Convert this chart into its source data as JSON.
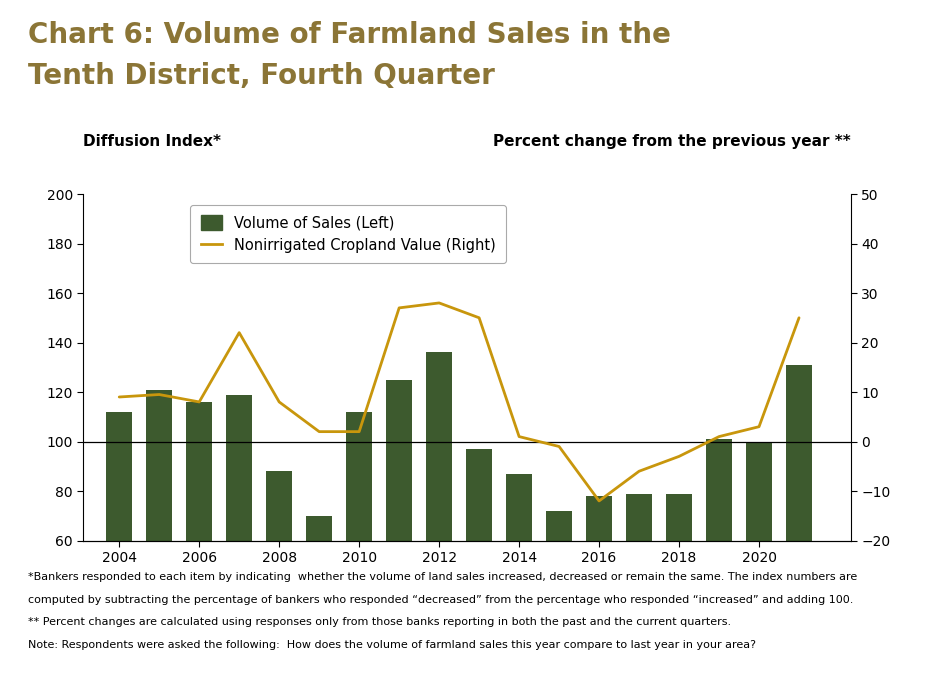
{
  "years": [
    2004,
    2005,
    2006,
    2007,
    2008,
    2009,
    2010,
    2011,
    2012,
    2013,
    2014,
    2015,
    2016,
    2017,
    2018,
    2019,
    2020,
    2021
  ],
  "bar_values": [
    112,
    121,
    116,
    119,
    88,
    70,
    112,
    125,
    136,
    97,
    87,
    72,
    78,
    79,
    79,
    101,
    100,
    131
  ],
  "line_values": [
    9,
    9.5,
    8,
    22,
    8,
    2,
    2,
    27,
    28,
    25,
    1,
    -1,
    -12,
    -6,
    -3,
    1,
    3,
    25
  ],
  "bar_color": "#3d5a2e",
  "line_color": "#c8960c",
  "title_line1": "Chart 6: Volume of Farmland Sales in the",
  "title_line2": "Tenth District, Fourth Quarter",
  "title_color": "#8b7536",
  "left_axis_label": "Diffusion Index*",
  "right_axis_label": "Percent change from the previous year **",
  "ylim_left": [
    60,
    200
  ],
  "ylim_right": [
    -20,
    50
  ],
  "yticks_left": [
    60,
    80,
    100,
    120,
    140,
    160,
    180,
    200
  ],
  "yticks_right": [
    -20,
    -10,
    0,
    10,
    20,
    30,
    40,
    50
  ],
  "xticks": [
    2004,
    2006,
    2008,
    2010,
    2012,
    2014,
    2016,
    2018,
    2020
  ],
  "legend_label_bar": "Volume of Sales (Left)",
  "legend_label_line": "Nonirrigated Cropland Value (Right)",
  "footnote1": "*Bankers responded to each item by indicating  whether the volume of land sales increased, decreased or remain the same. The index numbers are",
  "footnote2": "computed by subtracting the percentage of bankers who responded “decreased” from the percentage who responded “increased” and adding 100.",
  "footnote3": "** Percent changes are calculated using responses only from those banks reporting in both the past and the current quarters.",
  "footnote4": "Note: Respondents were asked the following:  How does the volume of farmland sales this year compare to last year in your area?",
  "bar_width": 0.65,
  "xlim": [
    2003.1,
    2022.3
  ],
  "title_fontsize": 20,
  "axis_label_fontsize": 11,
  "tick_fontsize": 10,
  "legend_fontsize": 10.5,
  "footnote_fontsize": 8.0
}
